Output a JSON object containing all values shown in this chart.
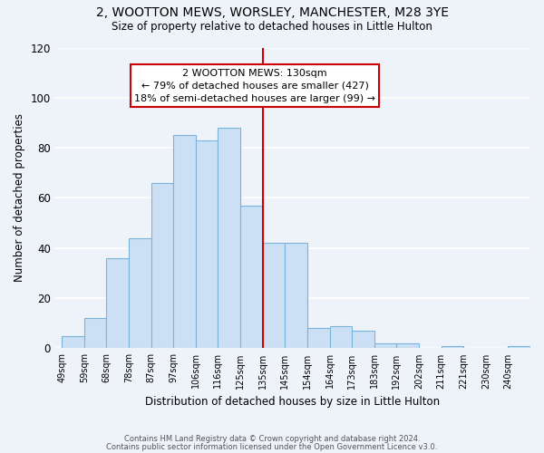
{
  "title": "2, WOOTTON MEWS, WORSLEY, MANCHESTER, M28 3YE",
  "subtitle": "Size of property relative to detached houses in Little Hulton",
  "xlabel": "Distribution of detached houses by size in Little Hulton",
  "ylabel": "Number of detached properties",
  "bin_labels": [
    "49sqm",
    "59sqm",
    "68sqm",
    "78sqm",
    "87sqm",
    "97sqm",
    "106sqm",
    "116sqm",
    "125sqm",
    "135sqm",
    "145sqm",
    "154sqm",
    "164sqm",
    "173sqm",
    "183sqm",
    "192sqm",
    "202sqm",
    "211sqm",
    "221sqm",
    "230sqm",
    "240sqm"
  ],
  "bar_values": [
    5,
    12,
    36,
    44,
    66,
    85,
    83,
    88,
    57,
    42,
    42,
    8,
    9,
    7,
    2,
    2,
    0,
    1,
    0,
    0,
    1
  ],
  "bar_color": "#cce0f5",
  "bar_edge_color": "#7ab4d8",
  "vline_x": 9,
  "vline_color": "#cc0000",
  "annotation_title": "2 WOOTTON MEWS: 130sqm",
  "annotation_line1": "← 79% of detached houses are smaller (427)",
  "annotation_line2": "18% of semi-detached houses are larger (99) →",
  "annotation_box_color": "#ffffff",
  "annotation_box_edge": "#cc0000",
  "ylim": [
    0,
    120
  ],
  "xlim_left": -0.3,
  "footnote1": "Contains HM Land Registry data © Crown copyright and database right 2024.",
  "footnote2": "Contains public sector information licensed under the Open Government Licence v3.0.",
  "background_color": "#eef2f9"
}
